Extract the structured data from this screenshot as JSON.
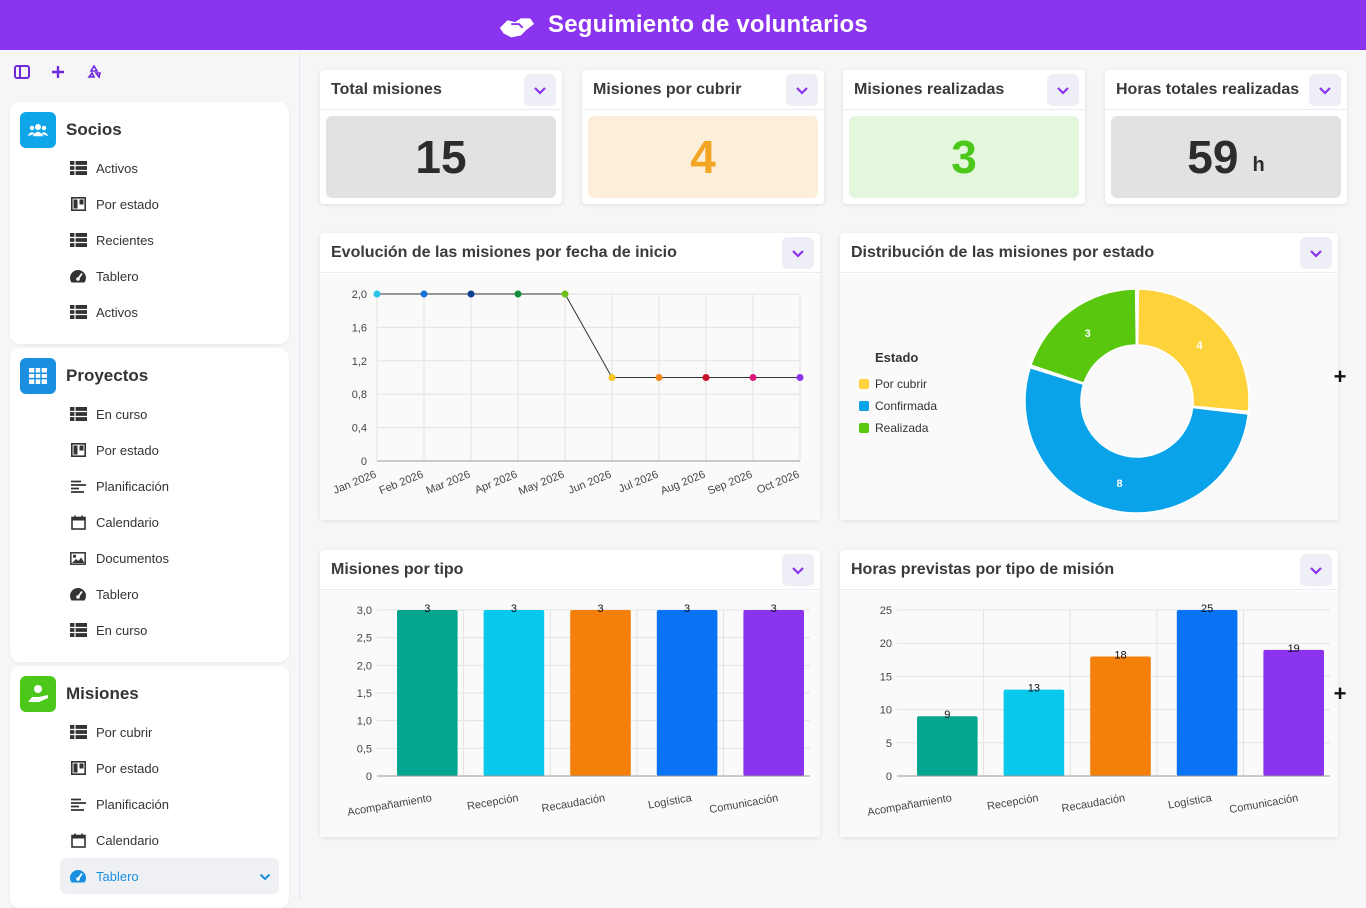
{
  "app": {
    "title": "Seguimiento de voluntarios",
    "accent": "#8b34ef"
  },
  "sidebar": {
    "tools": [
      "panel-icon",
      "add-icon",
      "recycle-icon"
    ],
    "groups": [
      {
        "title": "Socios",
        "icon": "people-icon",
        "color": "#0ea5e9",
        "items": [
          {
            "label": "Activos",
            "icon": "table-icon"
          },
          {
            "label": "Por estado",
            "icon": "kanban-icon"
          },
          {
            "label": "Recientes",
            "icon": "table-icon"
          },
          {
            "label": "Tablero",
            "icon": "dashboard-icon"
          },
          {
            "label": "Activos",
            "icon": "table-icon"
          }
        ]
      },
      {
        "title": "Proyectos",
        "icon": "grid-icon",
        "color": "#1a8fe0",
        "items": [
          {
            "label": "En curso",
            "icon": "table-icon"
          },
          {
            "label": "Por estado",
            "icon": "kanban-icon"
          },
          {
            "label": "Planificación",
            "icon": "gantt-icon"
          },
          {
            "label": "Calendario",
            "icon": "calendar-icon"
          },
          {
            "label": "Documentos",
            "icon": "gallery-icon"
          },
          {
            "label": "Tablero",
            "icon": "dashboard-icon"
          },
          {
            "label": "En curso",
            "icon": "table-icon"
          }
        ]
      },
      {
        "title": "Misiones",
        "icon": "hand-person-icon",
        "color": "#4cc81a",
        "items": [
          {
            "label": "Por cubrir",
            "icon": "table-icon"
          },
          {
            "label": "Por estado",
            "icon": "kanban-icon"
          },
          {
            "label": "Planificación",
            "icon": "gantt-icon"
          },
          {
            "label": "Calendario",
            "icon": "calendar-icon"
          },
          {
            "label": "Tablero",
            "icon": "dashboard-icon",
            "active": true
          }
        ]
      }
    ]
  },
  "kpis": [
    {
      "label": "Total misiones",
      "value": "15",
      "unit": "",
      "bg": "#e2e2e2",
      "color": "#2c2c2c"
    },
    {
      "label": "Misiones por cubrir",
      "value": "4",
      "unit": "",
      "bg": "#fbefd9",
      "color": "#f5a524"
    },
    {
      "label": "Misiones realizadas",
      "value": "3",
      "unit": "",
      "bg": "#e4f6dc",
      "color": "#4cc81a"
    },
    {
      "label": "Horas totales realizadas",
      "value": "59",
      "unit": "h",
      "bg": "#e2e2e2",
      "color": "#2c2c2c"
    }
  ],
  "charts": {
    "line_title": "Evolución de las misiones por fecha de inicio",
    "pie_title": "Distribución de las misiones por estado",
    "bar1_title": "Misiones por tipo",
    "bar2_title": "Horas previstas por tipo de misión"
  },
  "chart_data": [
    {
      "type": "line",
      "categories": [
        "Jan 2026",
        "Feb 2026",
        "Mar 2026",
        "Apr 2026",
        "May 2026",
        "Jun 2026",
        "Jul 2026",
        "Aug 2026",
        "Sep 2026",
        "Oct 2026"
      ],
      "values": [
        2,
        2,
        2,
        2,
        2,
        1,
        1,
        1,
        1,
        1
      ],
      "point_colors": [
        "#29c3e8",
        "#1a6fd6",
        "#0b3d91",
        "#138a3c",
        "#6ac21a",
        "#f5c518",
        "#f08a1c",
        "#c8102e",
        "#e0177a",
        "#8b34ef"
      ],
      "yticks": [
        "0",
        "0,4",
        "0,8",
        "1,2",
        "1,6",
        "2,0"
      ],
      "ylim": [
        0,
        2
      ],
      "grid": true
    },
    {
      "type": "pie",
      "legend_title": "Estado",
      "legend_position": "left",
      "slices": [
        {
          "name": "Por cubrir",
          "value": 4,
          "color": "#fdd23a"
        },
        {
          "name": "Confirmada",
          "value": 8,
          "color": "#0aa3ea"
        },
        {
          "name": "Realizada",
          "value": 3,
          "color": "#58c70e"
        }
      ]
    },
    {
      "type": "bar",
      "categories": [
        "Acompañamiento",
        "Recepción",
        "Recaudación",
        "Logística",
        "Comunicación"
      ],
      "values": [
        3,
        3,
        3,
        3,
        3
      ],
      "colors": [
        "#06a58f",
        "#08c8ec",
        "#f57f0b",
        "#0a72f5",
        "#8b34ef"
      ],
      "yticks": [
        "0",
        "0,5",
        "1,0",
        "1,5",
        "2,0",
        "2,5",
        "3,0"
      ],
      "ylim": [
        0,
        3
      ],
      "grid": true
    },
    {
      "type": "bar",
      "categories": [
        "Acompañamiento",
        "Recepción",
        "Recaudación",
        "Logística",
        "Comunicación"
      ],
      "values": [
        9,
        13,
        18,
        25,
        19
      ],
      "colors": [
        "#06a58f",
        "#08c8ec",
        "#f57f0b",
        "#0a72f5",
        "#8b34ef"
      ],
      "yticks": [
        "0",
        "5",
        "10",
        "15",
        "20",
        "25"
      ],
      "ylim": [
        0,
        25
      ],
      "grid": true
    }
  ]
}
